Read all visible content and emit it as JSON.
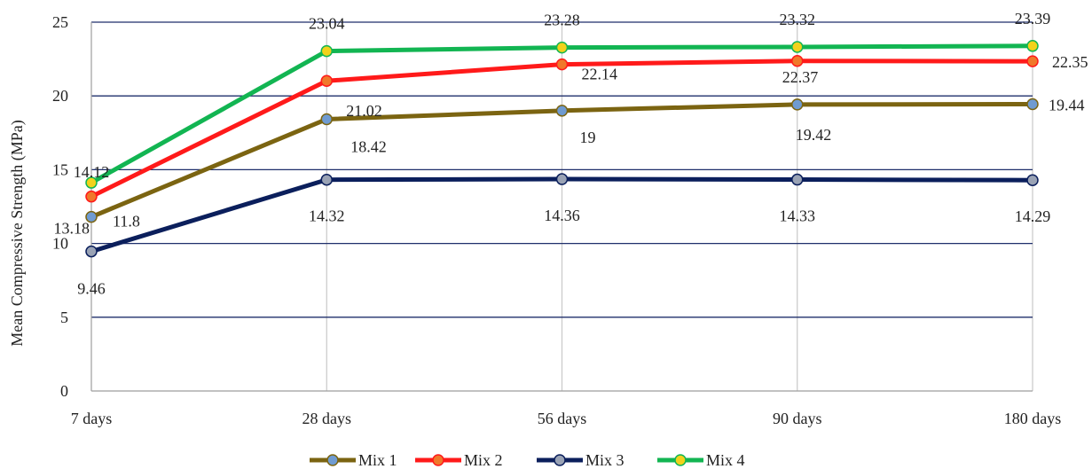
{
  "chart_data": {
    "type": "line",
    "title": "",
    "xlabel": "",
    "ylabel": "Mean Compressive Strength (MPa)",
    "categories": [
      "7 days",
      "28 days",
      "56 days",
      "90 days",
      "180 days"
    ],
    "ylim": [
      0,
      25
    ],
    "yticks": [
      0,
      5,
      10,
      15,
      20,
      25
    ],
    "grid": {
      "horizontal": true,
      "vertical": true
    },
    "legend_position": "bottom",
    "series": [
      {
        "name": "Mix 1",
        "values": [
          11.8,
          18.42,
          19,
          19.42,
          19.44
        ],
        "labels": [
          "11.8",
          "18.42",
          "19",
          "19.42",
          "19.44"
        ],
        "line_color": "#7B6411",
        "marker_fill": "#6F9BD1"
      },
      {
        "name": "Mix 2",
        "values": [
          13.18,
          21.02,
          22.14,
          22.37,
          22.35
        ],
        "labels": [
          "13.18",
          "21.02",
          "22.14",
          "22.37",
          "22.35"
        ],
        "line_color": "#FF1A1A",
        "marker_fill": "#F0782A"
      },
      {
        "name": "Mix 3",
        "values": [
          9.46,
          14.32,
          14.36,
          14.33,
          14.29
        ],
        "labels": [
          "9.46",
          "14.32",
          "14.36",
          "14.33",
          "14.29"
        ],
        "line_color": "#0B1F5C",
        "marker_fill": "#9AA3B5"
      },
      {
        "name": "Mix 4",
        "values": [
          14.12,
          23.04,
          23.28,
          23.32,
          23.39
        ],
        "labels": [
          "14.12",
          "23.04",
          "23.28",
          "23.32",
          "23.39"
        ],
        "line_color": "#12B552",
        "marker_fill": "#F2D21B"
      }
    ]
  }
}
